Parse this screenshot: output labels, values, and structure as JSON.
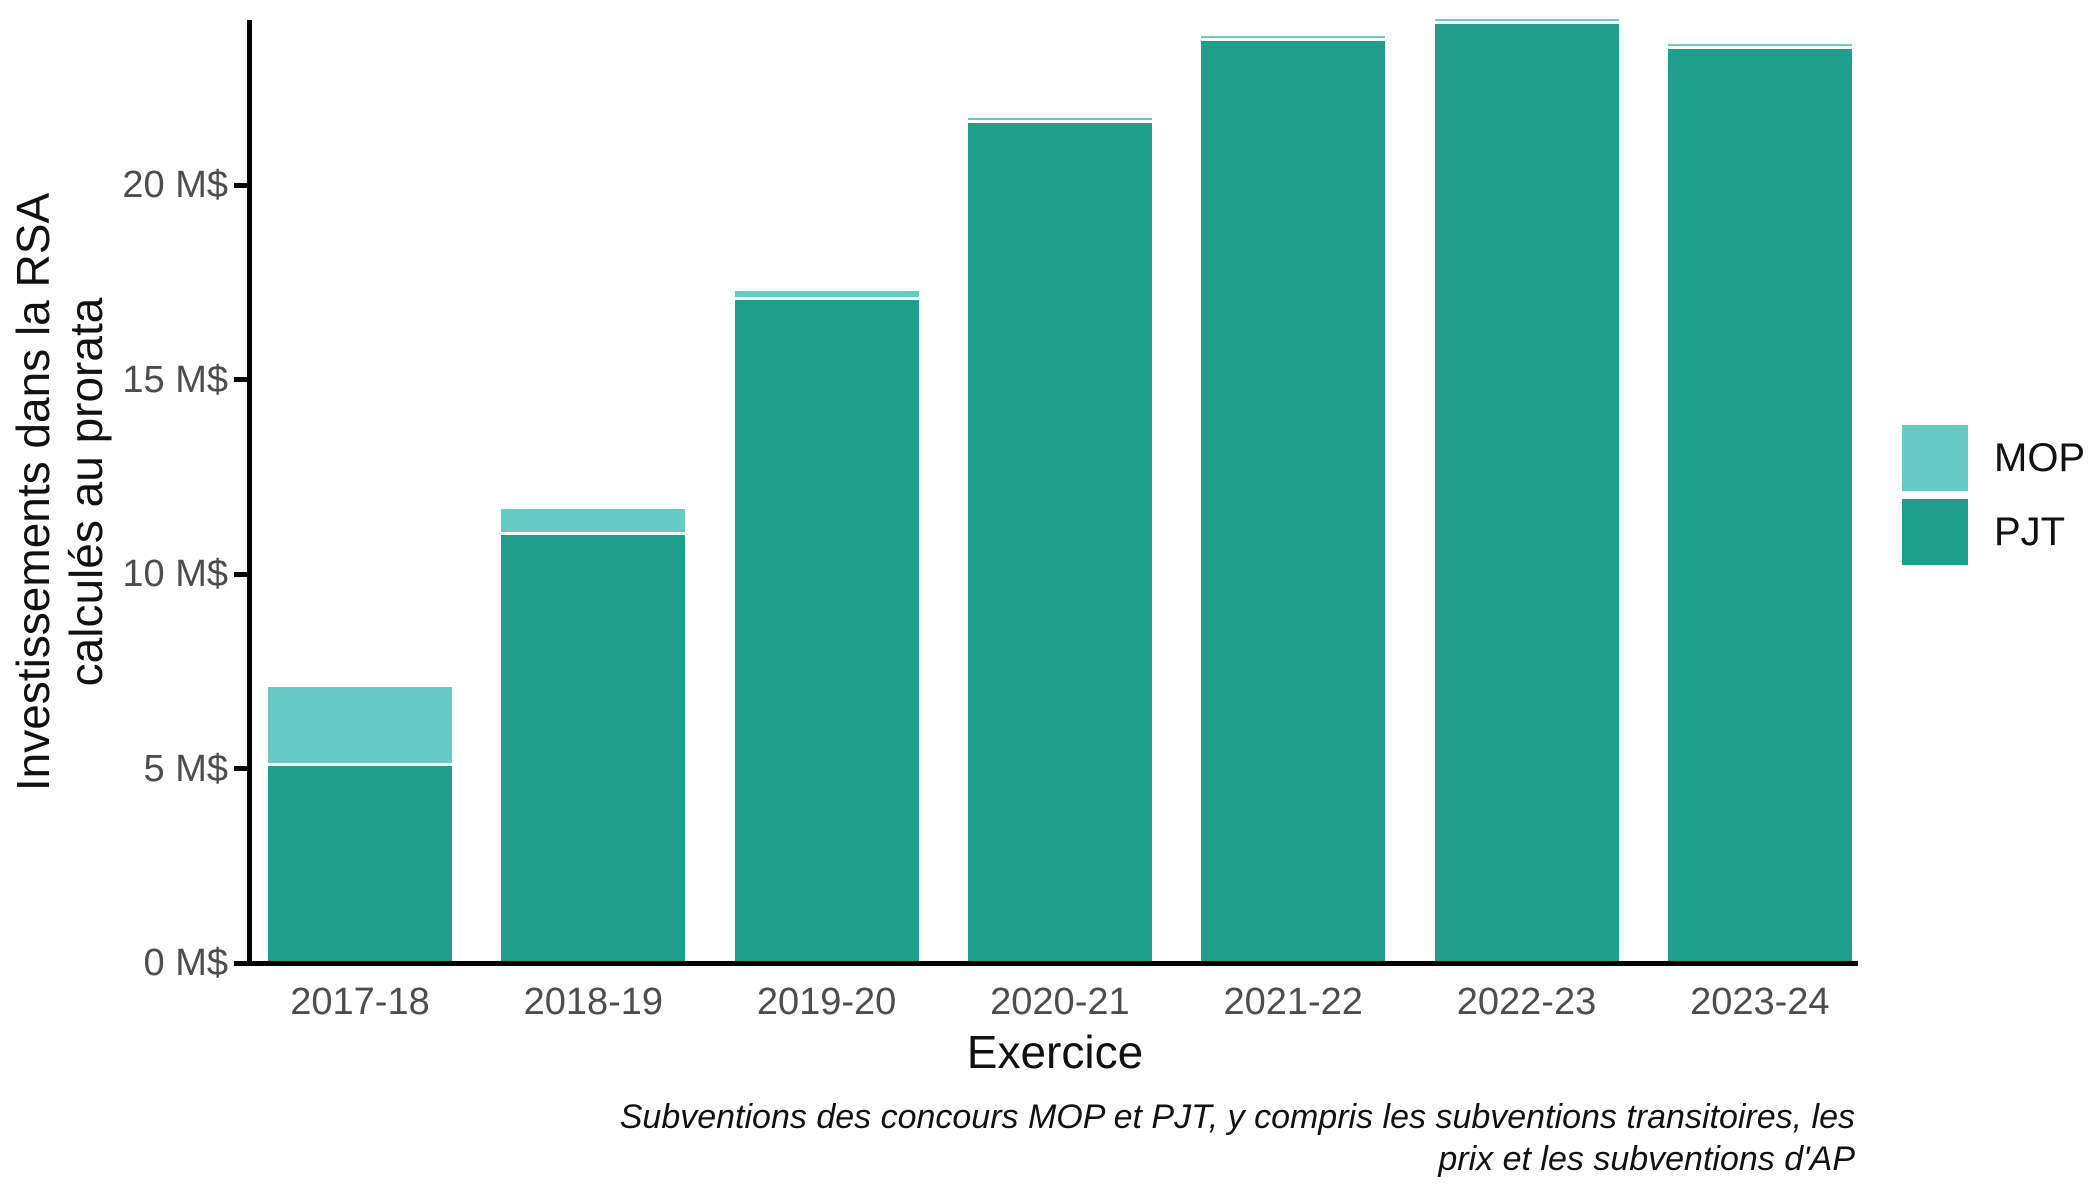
{
  "chart_data": {
    "type": "bar",
    "stacked": true,
    "title": "",
    "xlabel": "Exercice",
    "ylabel": "Investissements dans la RSA calculés au prorata",
    "ylabel_lines": [
      "Investissements dans la RSA",
      "calculés au prorata"
    ],
    "categories": [
      "2017-18",
      "2018-19",
      "2019-20",
      "2020-21",
      "2021-22",
      "2022-23",
      "2023-24"
    ],
    "series": [
      {
        "name": "MOP",
        "color": "#66cbc4",
        "values": [
          1.95,
          0.6,
          0.15,
          0.05,
          0.05,
          0.05,
          0.05
        ]
      },
      {
        "name": "PJT",
        "color": "#1f9e8e",
        "values": [
          5.0,
          10.95,
          17.0,
          21.55,
          23.65,
          24.1,
          23.45
        ]
      }
    ],
    "unit": "M$",
    "ylim": [
      0,
      24.2
    ],
    "y_ticks": [
      {
        "value": 0,
        "label": "0 M$"
      },
      {
        "value": 5,
        "label": "5 M$"
      },
      {
        "value": 10,
        "label": "10 M$"
      },
      {
        "value": 15,
        "label": "15 M$"
      },
      {
        "value": 20,
        "label": "20 M$"
      }
    ],
    "grid": false,
    "legend_position": "right",
    "caption_lines": [
      "Subventions des concours MOP et PJT, y compris les subventions transitoires, les",
      "prix et les subventions d'AP"
    ]
  },
  "colors": {
    "mop": "#66cbc4",
    "pjt": "#1f9e8e",
    "axis_text": "#4d4d4d",
    "axis_line": "#000000",
    "background": "#ffffff",
    "segment_separator": "#ffffff"
  }
}
